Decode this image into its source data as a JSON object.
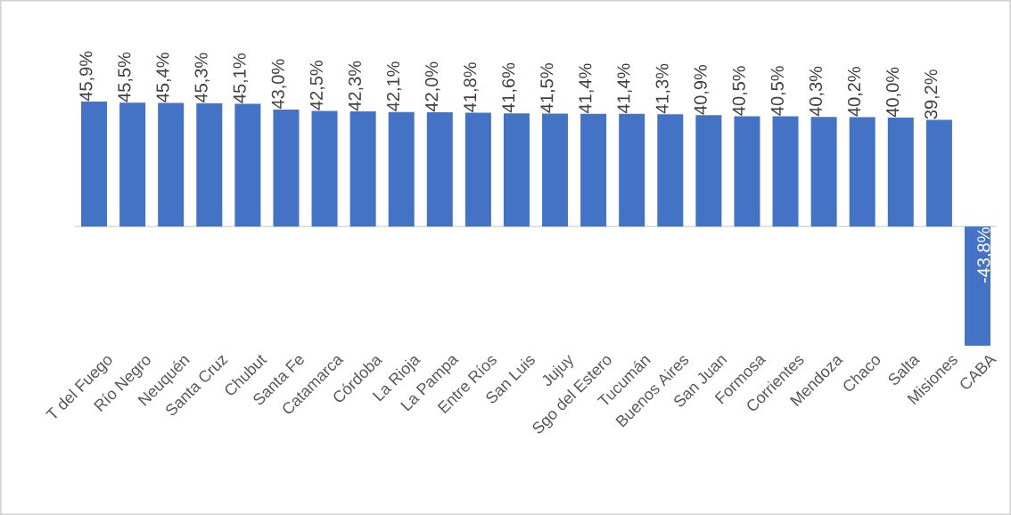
{
  "chart_data": {
    "type": "bar",
    "color": "#4472c4",
    "categories": [
      "T del Fuego",
      "Río Negro",
      "Neuquén",
      "Santa Cruz",
      "Chubut",
      "Santa Fe",
      "Catamarca",
      "Córdoba",
      "La Rioja",
      "La Pampa",
      "Entre Ríos",
      "San Luis",
      "Jujuy",
      "Sgo del Estero",
      "Tucumán",
      "Buenos Aires",
      "San Juan",
      "Formosa",
      "Corrientes",
      "Mendoza",
      "Chaco",
      "Salta",
      "Misiones",
      "CABA"
    ],
    "values": [
      45.9,
      45.5,
      45.4,
      45.3,
      45.1,
      43.0,
      42.5,
      42.3,
      42.1,
      42.0,
      41.8,
      41.6,
      41.5,
      41.4,
      41.4,
      41.3,
      40.9,
      40.5,
      40.5,
      40.3,
      40.2,
      40.0,
      39.2,
      -43.8
    ],
    "value_labels": [
      "45,9%",
      "45,5%",
      "45,4%",
      "45,3%",
      "45,1%",
      "43,0%",
      "42,5%",
      "42,3%",
      "42,1%",
      "42,0%",
      "41,8%",
      "41,6%",
      "41,5%",
      "41,4%",
      "41,4%",
      "41,3%",
      "40,9%",
      "40,5%",
      "40,5%",
      "40,3%",
      "40,2%",
      "40,0%",
      "39,2%",
      "-43,8%"
    ]
  }
}
